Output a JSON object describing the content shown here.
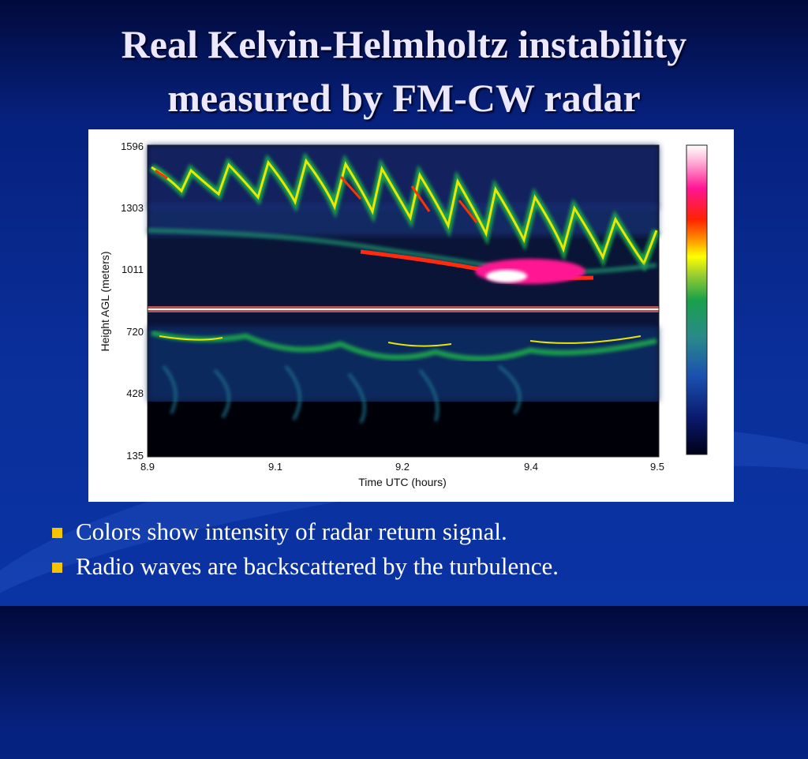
{
  "slide": {
    "title_line1": "Real Kelvin-Helmholtz instability",
    "title_line2": "measured by FM-CW radar",
    "bullets": [
      "Colors show intensity of radar return signal.",
      "Radio waves are backscattered by the turbulence."
    ],
    "colors": {
      "background": "#0a2f9a",
      "title": "#ece8ff",
      "bullet_marker": "#f4c400"
    }
  },
  "chart_data": {
    "type": "heatmap",
    "xlabel": "Time UTC (hours)",
    "ylabel": "Height AGL (meters)",
    "x_ticks": [
      "8.9",
      "9.1",
      "9.2",
      "9.4",
      "9.5"
    ],
    "x_tick_values": [
      8.9,
      9.1,
      9.2,
      9.4,
      9.5
    ],
    "y_ticks": [
      "1596",
      "1303",
      "1011",
      "720",
      "428",
      "135"
    ],
    "y_tick_values": [
      1596,
      1303,
      1011,
      720,
      428,
      135
    ],
    "xlim": [
      8.9,
      9.5
    ],
    "ylim": [
      135,
      1596
    ],
    "colorbar": [
      "#000018",
      "#0a1a6e",
      "#1a4fb0",
      "#2a8a8a",
      "#1aa04a",
      "#9acd32",
      "#ffff00",
      "#ff8800",
      "#ff2200",
      "#ff1493",
      "#ffb6d9",
      "#ffffff"
    ]
  }
}
